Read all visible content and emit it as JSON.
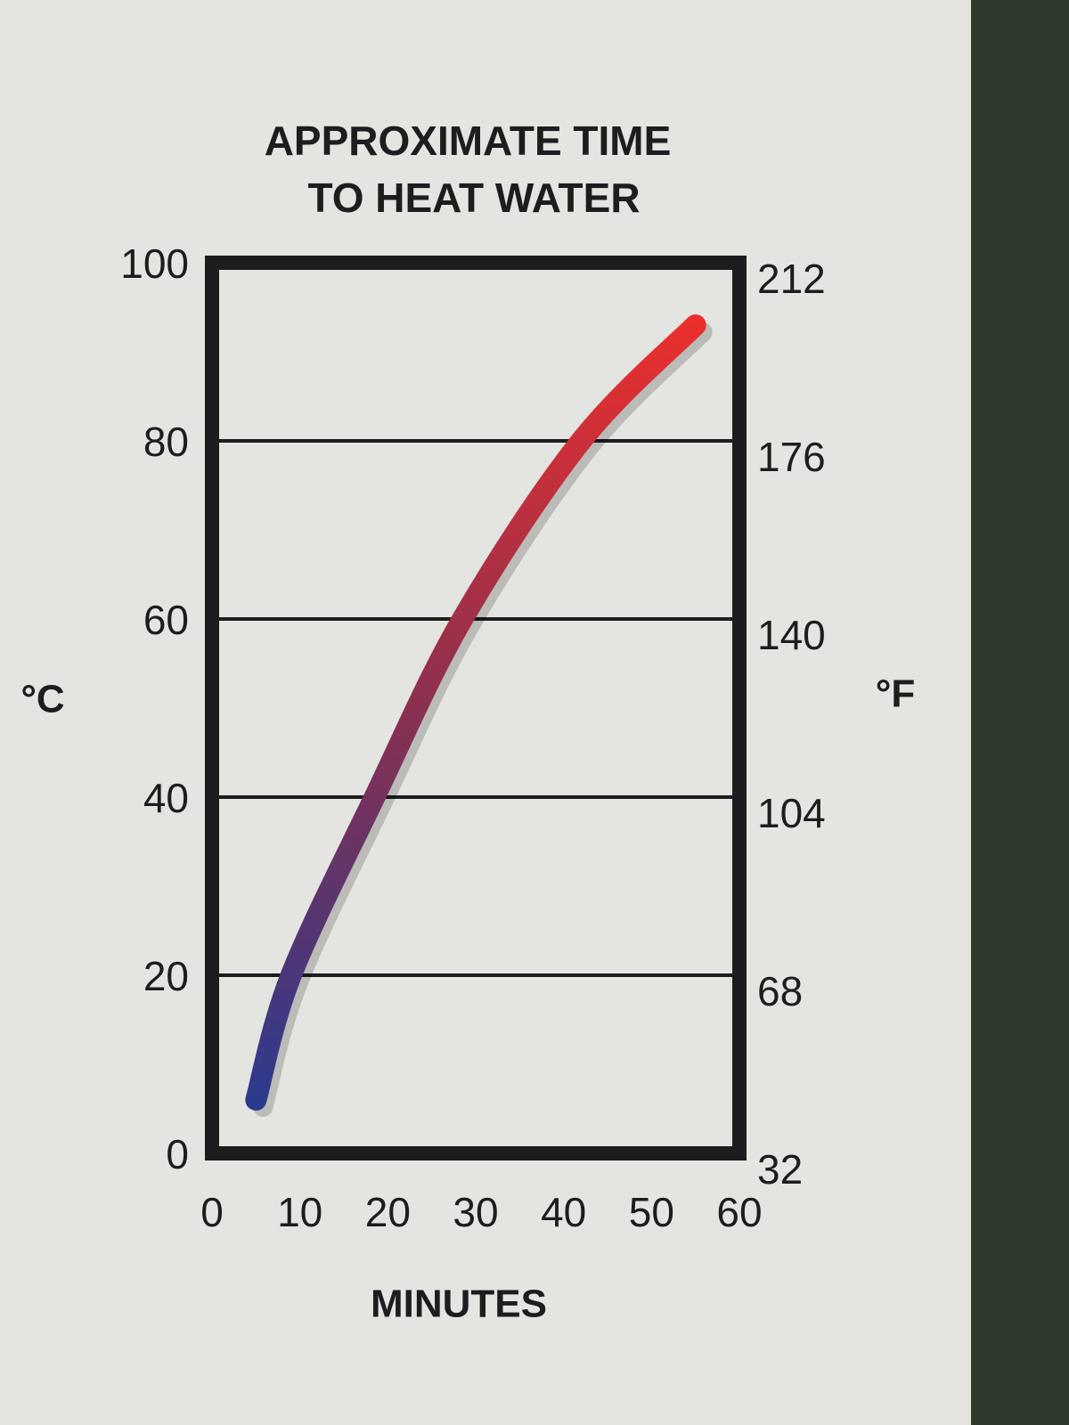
{
  "chart_data": {
    "type": "line",
    "title": [
      "APPROXIMATE TIME",
      "TO HEAT WATER"
    ],
    "x_label": "MINUTES",
    "y_label": "°C",
    "y2_label": "°F",
    "x": [
      5,
      9,
      18.5,
      28.5,
      42,
      55
    ],
    "values": [
      6,
      20,
      40,
      60,
      80,
      93
    ],
    "gradient": [
      "#2a3a8e",
      "#ee2f2c"
    ],
    "xlim": [
      0,
      60
    ],
    "xticks": [
      0,
      10,
      20,
      30,
      40,
      50,
      60
    ],
    "ylim": [
      0,
      100
    ],
    "yticks": [
      0,
      20,
      40,
      60,
      80,
      100
    ],
    "y2lim": [
      32,
      212
    ],
    "y2ticks": [
      32,
      68,
      104,
      140,
      176,
      212
    ],
    "grid": true
  }
}
